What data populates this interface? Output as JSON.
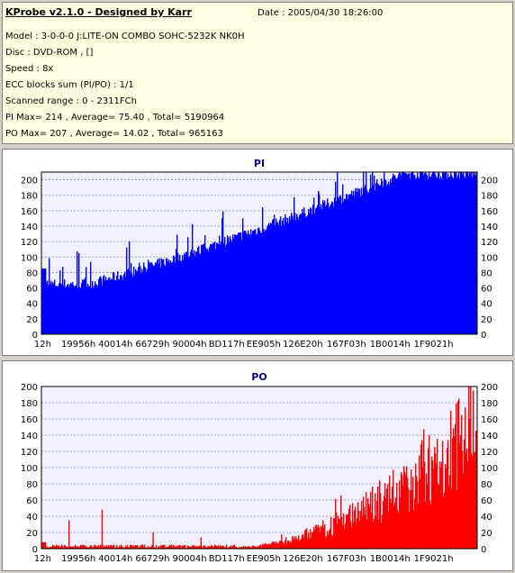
{
  "info": {
    "title": "KProbe v2.1.0 - Designed by Karr",
    "date": "Date : 2005/04/30 18:26:00",
    "lines": [
      "Model : 3-0-0-0 J:LITE-ON COMBO SOHC-5232K NK0H",
      "Disc : DVD-ROM ,  []",
      "Speed : 8x",
      "ECC blocks sum (PI/PO) : 1/1",
      "Scanned range : 0 - 2311FCh",
      "PI Max= 214 , Average= 75.40 , Total= 5190964",
      "PO Max= 207 , Average= 14.02 , Total= 965163"
    ]
  },
  "chart_data": [
    {
      "type": "bar",
      "title": "PI",
      "color": "#0000ff",
      "ylim": [
        0,
        210
      ],
      "yticks": [
        0,
        20,
        40,
        60,
        80,
        100,
        120,
        140,
        160,
        180,
        200
      ],
      "xticks": [
        "12h",
        "19956h",
        "40014h",
        "66729h",
        "90004h",
        "BD117h",
        "EE905h",
        "126E20h",
        "167F03h",
        "1B0014h",
        "1F9021h"
      ],
      "max": 214,
      "average": 75.4
    },
    {
      "type": "bar",
      "title": "PO",
      "color": "#ff0000",
      "ylim": [
        0,
        200
      ],
      "yticks": [
        0,
        20,
        40,
        60,
        80,
        100,
        120,
        140,
        160,
        180,
        200
      ],
      "xticks": [
        "12h",
        "19956h",
        "40014h",
        "66729h",
        "90004h",
        "BD117h",
        "EE905h",
        "126E20h",
        "167F03h",
        "1B0014h",
        "1F9021h"
      ],
      "max": 207,
      "average": 14.02
    }
  ]
}
